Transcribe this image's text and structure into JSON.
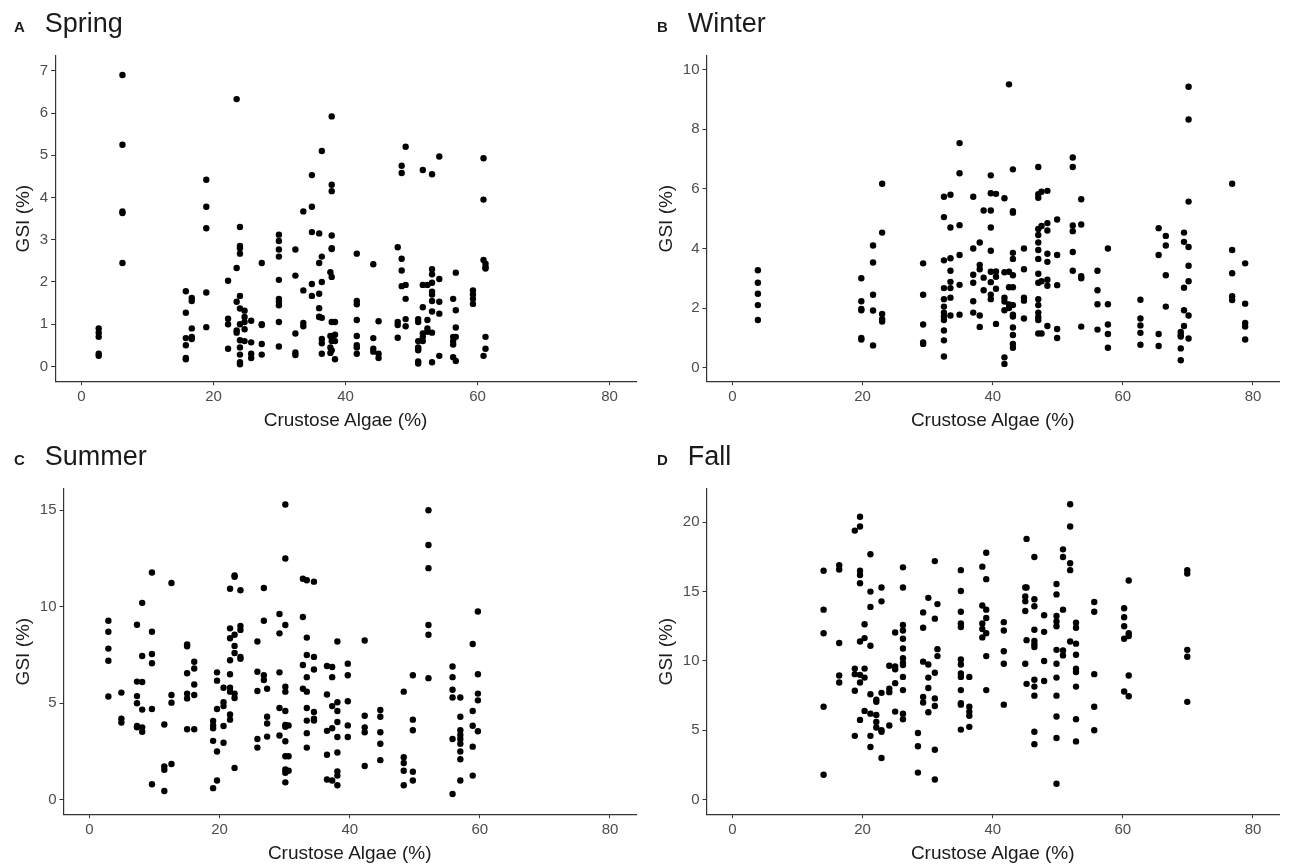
{
  "chart_data": [
    {
      "type": "scatter",
      "title": "Spring",
      "annotations": [
        "A"
      ],
      "xlabel": "Crustose Algae (%)",
      "ylabel": "GSI (%)",
      "xlim": [
        -4,
        84
      ],
      "xticks": [
        0,
        20,
        40,
        60,
        80
      ],
      "ylim": [
        -0.35,
        7.35
      ],
      "yticks": [
        0,
        1,
        2,
        3,
        4,
        5,
        6,
        7
      ],
      "grid": false,
      "legend": false,
      "marker": "circle",
      "series": [
        {
          "color": "#000000",
          "x": [
            2.6,
            2.6,
            2.6,
            2.6,
            2.6,
            6.2,
            6.2,
            6.2,
            6.2,
            6.2,
            15.8,
            15.8,
            15.8,
            15.8,
            15.8,
            15.8,
            16.7,
            16.7,
            16.7,
            16.7,
            16.7,
            18.9,
            18.9,
            18.9,
            18.9,
            18.9,
            22.2,
            22.2,
            22.2,
            22.2,
            23.5,
            23.5,
            23.5,
            23.5,
            23.5,
            24,
            24,
            24,
            24,
            24,
            24,
            24,
            24,
            24,
            24,
            24,
            24,
            24.7,
            24.7,
            24.7,
            24.7,
            24.7,
            25.7,
            25.7,
            25.7,
            25.7,
            27.3,
            27.3,
            27.3,
            27.3,
            27.3,
            29.9,
            29.9,
            29.9,
            29.9,
            29.9,
            29.9,
            29.9,
            29.9,
            29.9,
            29.9,
            32.4,
            32.4,
            32.4,
            32.4,
            32.4,
            33.6,
            33.6,
            33.6,
            33.6,
            34.9,
            34.9,
            34.9,
            34.9,
            34.9,
            36,
            36,
            36,
            36,
            36,
            36,
            36.4,
            36.4,
            36.4,
            36.4,
            36.4,
            36.4,
            36.4,
            37.7,
            37.7,
            37.7,
            37.7,
            37.9,
            37.9,
            37.9,
            37.9,
            37.9,
            37.9,
            37.9,
            37.9,
            37.9,
            37.9,
            37.9,
            38.4,
            38.4,
            38.4,
            38.4,
            41.7,
            41.7,
            41.7,
            41.7,
            41.7,
            41.7,
            41.7,
            41.7,
            44.2,
            44.2,
            44.2,
            44.2,
            45,
            45,
            45,
            47.9,
            47.9,
            47.9,
            47.9,
            48.5,
            48.5,
            48.5,
            48.5,
            48.5,
            49.1,
            49.1,
            49.1,
            49.1,
            49.1,
            51,
            51,
            51,
            51,
            51,
            51,
            51,
            51,
            51.7,
            51.7,
            51.7,
            51.7,
            51.7,
            51.7,
            52.4,
            52.4,
            52.4,
            52.4,
            53.1,
            53.1,
            53.1,
            53.1,
            53.1,
            53.1,
            53.1,
            53.1,
            53.1,
            53.1,
            54.2,
            54.2,
            54.2,
            54.2,
            54.2,
            56.3,
            56.3,
            56.3,
            56.3,
            56.3,
            56.7,
            56.7,
            56.7,
            56.7,
            56.7,
            59.3,
            59.3,
            59.3,
            59.3,
            60.9,
            60.9,
            60.9,
            60.9,
            61.2,
            61.2,
            61.2,
            61.2,
            61.2
          ],
          "values": [
            0.9,
            0.8,
            0.7,
            0.3,
            0.25,
            6.9,
            5.25,
            3.67,
            3.63,
            2.45,
            1.78,
            1.27,
            0.67,
            0.5,
            0.2,
            0.17,
            1.62,
            1.55,
            0.9,
            0.7,
            0.65,
            4.42,
            3.78,
            3.27,
            1.75,
            0.93,
            2.03,
            1.13,
            1.0,
            0.42,
            6.33,
            2.33,
            1.53,
            0.85,
            0.8,
            3.3,
            2.85,
            2.8,
            2.67,
            1.67,
            1.37,
            1.0,
            0.62,
            0.45,
            0.28,
            0.1,
            0.05,
            1.32,
            1.17,
            1.05,
            0.88,
            0.6,
            1.08,
            0.57,
            0.3,
            0.2,
            2.45,
            1.0,
            0.98,
            0.53,
            0.28,
            3.12,
            2.97,
            2.77,
            2.6,
            2.05,
            1.6,
            1.53,
            1.45,
            1.05,
            0.47,
            2.77,
            2.15,
            0.78,
            0.33,
            0.27,
            3.67,
            1.8,
            1.03,
            0.95,
            4.53,
            3.78,
            3.18,
            1.95,
            1.67,
            3.15,
            2.45,
            1.72,
            1.38,
            1.17,
            1.18,
            5.1,
            2.6,
            2.0,
            1.15,
            0.65,
            0.55,
            0.3,
            2.23,
            0.72,
            0.45,
            0.32,
            5.92,
            4.3,
            4.15,
            3.1,
            2.8,
            2.78,
            2.12,
            1.05,
            0.7,
            0.6,
            0.38,
            1.05,
            0.75,
            0.6,
            0.17,
            2.67,
            1.55,
            1.47,
            1.1,
            0.72,
            0.5,
            0.45,
            0.3,
            2.42,
            0.67,
            0.42,
            0.35,
            1.07,
            0.3,
            0.2,
            2.82,
            1.05,
            0.98,
            0.68,
            4.75,
            4.58,
            2.55,
            2.27,
            1.9,
            5.2,
            1.93,
            1.6,
            1.12,
            0.95,
            1.12,
            1.05,
            0.6,
            0.45,
            0.42,
            0.38,
            0.12,
            0.07,
            4.65,
            1.93,
            1.4,
            0.78,
            0.7,
            0.6,
            1.93,
            1.1,
            0.9,
            0.82,
            4.55,
            2.3,
            2.18,
            1.98,
            1.77,
            1.7,
            1.55,
            1.3,
            0.8,
            0.1,
            4.97,
            2.07,
            1.53,
            1.25,
            0.25,
            1.6,
            0.7,
            0.6,
            0.52,
            0.22,
            2.22,
            1.33,
            0.92,
            0.7,
            0.13,
            1.8,
            1.7,
            1.6,
            1.48,
            4.93,
            3.95,
            2.52,
            0.25,
            2.43,
            2.35,
            2.32,
            0.7,
            0.42
          ]
        }
      ]
    },
    {
      "type": "scatter",
      "title": "Winter",
      "annotations": [
        "B"
      ],
      "xlabel": "Crustose Algae (%)",
      "ylabel": "GSI (%)",
      "xlim": [
        -4,
        84
      ],
      "xticks": [
        0,
        20,
        40,
        60,
        80
      ],
      "ylim": [
        -0.45,
        10.45
      ],
      "yticks": [
        0,
        2,
        4,
        6,
        8,
        10
      ],
      "grid": false,
      "legend": false,
      "marker": "circle",
      "series": [
        {
          "color": "#000000",
          "x": [
            3.9,
            3.9,
            3.9,
            3.9,
            3.9,
            19.8,
            19.8,
            19.8,
            19.8,
            19.8,
            19.8,
            21.6,
            21.6,
            21.6,
            21.6,
            21.6,
            23,
            23,
            23,
            23,
            23,
            29.3,
            29.3,
            29.3,
            29.3,
            29.3,
            32.5,
            32.5,
            32.5,
            32.5,
            32.5,
            32.5,
            32.5,
            32.5,
            32.5,
            32.5,
            32.5,
            32.5,
            33.5,
            33.5,
            33.5,
            33.5,
            33.5,
            33.5,
            33.5,
            33.5,
            34.9,
            34.9,
            34.9,
            34.9,
            34.9,
            34.9,
            37,
            37,
            37,
            37,
            37,
            37,
            38,
            38,
            38,
            38,
            38,
            38.6,
            38.6,
            38.6,
            39.7,
            39.7,
            39.7,
            39.7,
            39.7,
            39.7,
            39.7,
            39.7,
            39.7,
            40.5,
            40.5,
            40.5,
            40.5,
            40.5,
            41.8,
            41.8,
            41.8,
            41.8,
            41.8,
            41.8,
            41.8,
            42.5,
            42.5,
            42.5,
            42.5,
            42.5,
            43.1,
            43.1,
            43.1,
            43.1,
            43.1,
            43.1,
            43.1,
            43.1,
            43.1,
            43.1,
            43.1,
            43.1,
            43.1,
            43.1,
            44.8,
            44.8,
            44.8,
            44.8,
            44.8,
            47,
            47,
            47,
            47,
            47,
            47,
            47,
            47,
            47,
            47,
            47,
            47,
            47,
            47,
            47,
            47,
            47.5,
            47.5,
            47.5,
            47.5,
            48.4,
            48.4,
            48.4,
            48.4,
            48.4,
            48.4,
            48.4,
            48.4,
            49.9,
            49.9,
            49.9,
            49.9,
            49.9,
            52.3,
            52.3,
            52.3,
            52.3,
            52.3,
            52.3,
            53.6,
            53.6,
            53.6,
            53.6,
            53.6,
            56.1,
            56.1,
            56.1,
            56.1,
            57.7,
            57.7,
            57.7,
            57.7,
            57.7,
            62.7,
            62.7,
            62.7,
            62.7,
            62.7,
            65.5,
            65.5,
            65.5,
            65.5,
            66.6,
            66.6,
            66.6,
            66.6,
            68.9,
            68.9,
            68.9,
            68.9,
            68.9,
            69.4,
            69.4,
            69.4,
            69.4,
            69.4,
            70.1,
            70.1,
            70.1,
            70.1,
            70.1,
            70.1,
            70.1,
            70.1,
            76.8,
            76.8,
            76.8,
            76.8,
            76.8,
            78.8,
            78.8,
            78.8,
            78.8,
            78.8
          ],
          "values": [
            3.27,
            2.85,
            2.48,
            2.1,
            1.6,
            3.0,
            2.23,
            1.97,
            1.93,
            1.0,
            0.95,
            4.1,
            3.53,
            2.45,
            1.92,
            0.75,
            6.17,
            4.53,
            1.8,
            1.63,
            1.55,
            3.5,
            2.45,
            1.45,
            0.85,
            0.8,
            5.73,
            5.05,
            3.6,
            2.67,
            2.3,
            2.05,
            1.85,
            1.72,
            1.6,
            1.25,
            0.92,
            0.38,
            5.8,
            4.7,
            3.67,
            3.25,
            2.88,
            2.67,
            2.35,
            1.75,
            7.53,
            6.52,
            4.78,
            3.78,
            2.78,
            1.78,
            5.73,
            4.0,
            3.12,
            2.85,
            2.23,
            1.85,
            4.2,
            3.45,
            3.3,
            1.75,
            1.37,
            5.27,
            3.02,
            2.6,
            6.45,
            5.85,
            5.27,
            4.7,
            3.92,
            3.22,
            2.87,
            2.45,
            2.3,
            5.83,
            3.23,
            3.05,
            2.65,
            1.47,
            5.68,
            3.2,
            2.35,
            2.22,
            1.93,
            0.35,
            0.13,
            9.5,
            3.22,
            2.7,
            2.12,
            2.0,
            6.65,
            5.25,
            5.2,
            3.85,
            3.65,
            3.1,
            2.7,
            2.1,
            1.78,
            1.72,
            1.35,
            1.1,
            0.8,
            0.67,
            4.0,
            3.3,
            2.35,
            2.25,
            1.65,
            6.73,
            5.82,
            5.7,
            4.65,
            4.45,
            4.2,
            3.95,
            3.65,
            3.15,
            2.85,
            2.3,
            2.1,
            1.85,
            1.7,
            1.6,
            1.15,
            5.9,
            4.75,
            2.9,
            1.15,
            5.93,
            4.85,
            4.6,
            3.82,
            3.55,
            2.95,
            2.75,
            1.4,
            4.97,
            3.78,
            2.77,
            1.3,
            1.0,
            7.05,
            6.73,
            4.77,
            4.58,
            3.88,
            3.25,
            5.65,
            4.8,
            3.07,
            3.0,
            1.38,
            3.25,
            2.6,
            2.13,
            1.28,
            4.0,
            2.13,
            1.45,
            1.13,
            0.67,
            2.28,
            1.65,
            1.42,
            1.17,
            0.77,
            4.68,
            3.78,
            1.13,
            0.73,
            4.42,
            4.1,
            3.1,
            2.05,
            1.2,
            1.1,
            1.05,
            0.65,
            0.25,
            4.53,
            4.22,
            2.68,
            1.93,
            1.4,
            9.42,
            8.32,
            5.57,
            4.05,
            3.42,
            2.9,
            1.75,
            0.98,
            6.17,
            3.95,
            3.17,
            2.4,
            2.27,
            3.5,
            2.15,
            1.5,
            1.38,
            0.95
          ]
        }
      ]
    },
    {
      "type": "scatter",
      "title": "Summer",
      "annotations": [
        "C"
      ],
      "xlabel": "Crustose Algae (%)",
      "ylabel": "GSI (%)",
      "xlim": [
        -4,
        84
      ],
      "xticks": [
        0,
        20,
        40,
        60,
        80
      ],
      "ylim": [
        -0.75,
        16.1
      ],
      "yticks": [
        0,
        5,
        10,
        15
      ],
      "grid": false,
      "legend": false,
      "marker": "circle",
      "series": [
        {
          "color": "#000000",
          "x": [
            2.9,
            2.9,
            2.9,
            2.9,
            2.9,
            4.9,
            4.9,
            4.9,
            7.3,
            7.3,
            7.3,
            7.3,
            7.3,
            7.3,
            8.1,
            8.1,
            8.1,
            8.1,
            8.1,
            8.1,
            9.6,
            9.6,
            9.6,
            9.6,
            9.6,
            9.6,
            11.5,
            11.5,
            11.5,
            11.5,
            12.6,
            12.6,
            12.6,
            12.6,
            15,
            15,
            15,
            15,
            15,
            15,
            16.1,
            16.1,
            16.1,
            16.1,
            16.1,
            19,
            19,
            19,
            19,
            19,
            19.6,
            19.6,
            19.6,
            19.6,
            19.6,
            20.6,
            20.6,
            20.6,
            20.6,
            20.6,
            21.6,
            21.6,
            21.6,
            21.6,
            21.6,
            21.6,
            21.6,
            21.6,
            21.6,
            22.3,
            22.3,
            22.3,
            22.3,
            22.3,
            22.3,
            22.3,
            22.3,
            23.2,
            23.2,
            23.2,
            23.2,
            23.2,
            25.8,
            25.8,
            25.8,
            25.8,
            25.8,
            26.8,
            26.8,
            26.8,
            26.8,
            27.3,
            27.3,
            27.3,
            27.3,
            29.2,
            29.2,
            29.2,
            29.2,
            29.2,
            30.1,
            30.1,
            30.1,
            30.1,
            30.1,
            30.1,
            30.1,
            30.1,
            30.1,
            30.1,
            30.1,
            30.1,
            30.1,
            30.6,
            30.6,
            30.6,
            32.8,
            32.8,
            32.8,
            32.8,
            33.4,
            33.4,
            33.4,
            33.4,
            33.4,
            33.4,
            33.4,
            33.4,
            33.4,
            34.5,
            34.5,
            34.5,
            34.5,
            34.5,
            34.5,
            36.5,
            36.5,
            36.5,
            36.5,
            36.5,
            37.3,
            37.3,
            37.3,
            37.3,
            37.3,
            38.1,
            38.1,
            38.1,
            38.1,
            38.1,
            38.1,
            38.1,
            38.1,
            38.1,
            39.7,
            39.7,
            39.7,
            39.7,
            39.7,
            42.3,
            42.3,
            42.3,
            42.3,
            42.3,
            44.7,
            44.7,
            44.7,
            44.7,
            44.7,
            48.3,
            48.3,
            48.3,
            48.3,
            48.3,
            49.7,
            49.7,
            49.7,
            49.7,
            49.7,
            52.1,
            52.1,
            52.1,
            52.1,
            52.1,
            52.1,
            55.8,
            55.8,
            55.8,
            55.8,
            55.8,
            55.8,
            57,
            57,
            57,
            57,
            57,
            57,
            57,
            57,
            57,
            58.9,
            58.9,
            58.9,
            58.9,
            58.9,
            59.7,
            59.7,
            59.7,
            59.7,
            59.7
          ],
          "values": [
            9.27,
            8.7,
            7.83,
            7.2,
            5.35,
            5.55,
            4.2,
            4.0,
            9.07,
            6.12,
            5.37,
            5.0,
            3.82,
            3.75,
            10.2,
            7.45,
            6.1,
            4.67,
            3.52,
            3.75,
            11.77,
            8.7,
            7.55,
            7.07,
            4.7,
            0.8,
            3.9,
            1.73,
            1.55,
            0.45,
            11.23,
            5.43,
            5.03,
            1.85,
            8.05,
            7.95,
            6.55,
            5.5,
            5.25,
            3.65,
            7.15,
            6.8,
            5.97,
            5.43,
            3.65,
            4.08,
            3.85,
            3.7,
            3.05,
            0.6,
            6.6,
            6.17,
            4.7,
            2.5,
            1.0,
            5.8,
            5.05,
            4.85,
            3.82,
            2.95,
            10.93,
            8.88,
            8.37,
            7.23,
            6.5,
            5.8,
            5.6,
            4.42,
            4.15,
            11.62,
            11.55,
            8.55,
            7.97,
            7.6,
            5.5,
            5.27,
            1.65,
            10.85,
            9.0,
            8.8,
            7.4,
            7.3,
            8.2,
            6.63,
            5.63,
            3.15,
            2.7,
            10.97,
            9.27,
            6.45,
            6.2,
            5.75,
            4.3,
            3.95,
            3.27,
            9.62,
            8.62,
            6.6,
            4.75,
            3.33,
            15.3,
            12.5,
            9.05,
            5.85,
            5.6,
            4.6,
            3.87,
            3.78,
            3.03,
            2.25,
            1.57,
            1.4,
            0.9,
            3.85,
            2.25,
            1.5,
            11.45,
            9.47,
            6.98,
            5.75,
            11.37,
            8.4,
            7.5,
            6.35,
            5.6,
            4.75,
            4.1,
            3.45,
            2.7,
            11.3,
            7.4,
            6.75,
            4.55,
            4.2,
            4.1,
            6.93,
            5.45,
            3.57,
            2.33,
            1.05,
            6.88,
            6.35,
            4.85,
            3.7,
            1.0,
            8.2,
            5.05,
            4.6,
            4.03,
            3.25,
            2.45,
            1.47,
            1.25,
            0.75,
            7.05,
            6.45,
            5.1,
            3.85,
            3.25,
            8.25,
            4.35,
            3.75,
            3.5,
            1.75,
            4.65,
            4.3,
            3.5,
            2.9,
            2.05,
            5.6,
            2.2,
            1.9,
            1.5,
            0.75,
            6.45,
            4.15,
            3.6,
            1.45,
            1.0,
            15.0,
            13.2,
            12.0,
            9.05,
            8.55,
            6.3,
            6.9,
            6.35,
            5.7,
            5.3,
            3.15,
            0.3,
            5.3,
            4.3,
            3.6,
            3.35,
            3.15,
            2.9,
            2.5,
            2.1,
            1.0,
            8.07,
            4.6,
            3.83,
            2.75,
            1.25,
            9.75,
            6.5,
            5.5,
            5.15,
            3.55
          ]
        }
      ]
    },
    {
      "type": "scatter",
      "title": "Fall",
      "annotations": [
        "D"
      ],
      "xlabel": "Crustose Algae (%)",
      "ylabel": "GSI (%)",
      "xlim": [
        -4,
        84
      ],
      "xticks": [
        0,
        20,
        40,
        60,
        80
      ],
      "ylim": [
        -1.05,
        22.4
      ],
      "yticks": [
        0,
        5,
        10,
        15,
        20
      ],
      "grid": false,
      "legend": false,
      "marker": "circle",
      "series": [
        {
          "color": "#000000",
          "x": [
            14,
            14,
            14,
            14,
            14,
            16.4,
            16.4,
            16.4,
            16.4,
            16.4,
            18.8,
            18.8,
            18.8,
            18.8,
            18.8,
            19.6,
            19.6,
            19.6,
            19.6,
            19.6,
            19.6,
            19.6,
            19.6,
            19.6,
            20.3,
            20.3,
            20.3,
            20.3,
            20.3,
            21.2,
            21.2,
            21.2,
            21.2,
            21.2,
            21.2,
            21.2,
            21.2,
            22.1,
            22.1,
            22.1,
            22.1,
            22.1,
            22.9,
            22.9,
            22.9,
            22.9,
            22.9,
            22.9,
            24.1,
            24.1,
            24.1,
            24.1,
            25,
            25,
            25,
            25,
            25,
            26.2,
            26.2,
            26.2,
            26.2,
            26.2,
            26.2,
            26.2,
            26.2,
            26.2,
            26.2,
            26.2,
            26.2,
            26.2,
            28.5,
            28.5,
            28.5,
            29.3,
            29.3,
            29.3,
            29.3,
            29.3,
            30.1,
            30.1,
            30.1,
            30.1,
            30.1,
            31.1,
            31.1,
            31.1,
            31.1,
            31.1,
            31.1,
            31.1,
            31.5,
            31.5,
            31.5,
            35.1,
            35.1,
            35.1,
            35.1,
            35.1,
            35.1,
            35.1,
            35.1,
            35.1,
            35.1,
            35.1,
            35.1,
            35.1,
            36.4,
            36.4,
            36.4,
            36.4,
            36.4,
            38.4,
            38.4,
            38.4,
            38.4,
            38.4,
            39,
            39,
            39,
            39,
            39,
            39,
            39,
            41.7,
            41.7,
            41.7,
            41.7,
            41.7,
            45,
            45,
            45,
            45,
            45,
            45.2,
            45.2,
            45.2,
            45.2,
            46.4,
            46.4,
            46.4,
            46.4,
            46.4,
            46.4,
            46.4,
            46.4,
            46.4,
            46.4,
            46.4,
            46.4,
            47.9,
            47.9,
            47.9,
            47.9,
            49.8,
            49.8,
            49.8,
            49.8,
            49.8,
            49.8,
            49.8,
            49.8,
            49.8,
            49.8,
            49.8,
            49.8,
            50.8,
            50.8,
            50.8,
            50.8,
            50.8,
            51.9,
            51.9,
            51.9,
            51.9,
            51.9,
            52.8,
            52.8,
            52.8,
            52.8,
            52.8,
            52.8,
            52.8,
            52.8,
            52.8,
            55.6,
            55.6,
            55.6,
            55.6,
            55.6,
            60.2,
            60.2,
            60.2,
            60.2,
            60.2,
            60.9,
            60.9,
            60.9,
            60.9,
            60.9,
            69.9,
            69.9,
            69.9,
            69.9,
            69.9
          ],
          "values": [
            16.5,
            13.7,
            12.0,
            6.7,
            1.8,
            16.9,
            16.6,
            11.3,
            8.95,
            8.45,
            19.4,
            9.45,
            9.05,
            7.85,
            4.6,
            20.4,
            19.7,
            16.5,
            16.2,
            15.6,
            11.4,
            9.0,
            8.45,
            5.75,
            12.65,
            11.65,
            9.45,
            8.8,
            6.4,
            17.7,
            15.0,
            13.9,
            11.1,
            7.6,
            6.2,
            4.6,
            3.8,
            7.2,
            7.05,
            6.1,
            5.6,
            5.2,
            15.3,
            14.3,
            7.7,
            5.0,
            4.9,
            3.0,
            9.65,
            8.0,
            7.75,
            5.35,
            12.05,
            9.6,
            9.4,
            8.4,
            6.35,
            16.75,
            15.3,
            12.6,
            12.2,
            11.6,
            10.9,
            10.2,
            9.85,
            9.7,
            8.85,
            7.9,
            6.2,
            5.8,
            4.8,
            3.85,
            1.95,
            13.5,
            12.4,
            9.95,
            7.4,
            7.0,
            14.55,
            9.75,
            8.8,
            8.05,
            6.3,
            17.2,
            13.05,
            9.15,
            7.3,
            6.75,
            3.6,
            1.45,
            14.1,
            10.85,
            10.35,
            16.55,
            15.05,
            13.55,
            12.7,
            12.45,
            10.1,
            9.75,
            9.1,
            8.85,
            7.9,
            6.95,
            6.85,
            5.05,
            8.85,
            6.7,
            6.35,
            6.05,
            5.25,
            16.8,
            14.0,
            12.7,
            12.3,
            11.7,
            17.8,
            15.9,
            13.7,
            13.1,
            12.0,
            10.35,
            7.9,
            12.8,
            12.2,
            10.7,
            9.8,
            6.85,
            15.3,
            14.65,
            14.3,
            13.6,
            9.8,
            18.8,
            15.3,
            11.5,
            8.35,
            17.5,
            14.45,
            13.95,
            12.25,
            11.45,
            11.2,
            11.0,
            8.65,
            8.15,
            7.5,
            4.9,
            4.0,
            13.3,
            12.1,
            10.0,
            8.55,
            15.55,
            14.8,
            13.25,
            12.85,
            12.5,
            10.8,
            9.8,
            8.8,
            7.5,
            6.0,
            4.45,
            1.15,
            18.05,
            17.5,
            13.7,
            10.75,
            10.4,
            21.3,
            19.7,
            17.05,
            16.55,
            11.4,
            12.75,
            12.4,
            11.25,
            10.45,
            9.45,
            9.2,
            8.15,
            5.8,
            4.2,
            14.25,
            13.55,
            9.05,
            6.7,
            5.0,
            13.8,
            13.15,
            12.5,
            11.6,
            7.8,
            15.8,
            12.0,
            11.8,
            8.95,
            7.45,
            16.55,
            16.3,
            10.8,
            10.3,
            7.05
          ]
        }
      ]
    }
  ]
}
